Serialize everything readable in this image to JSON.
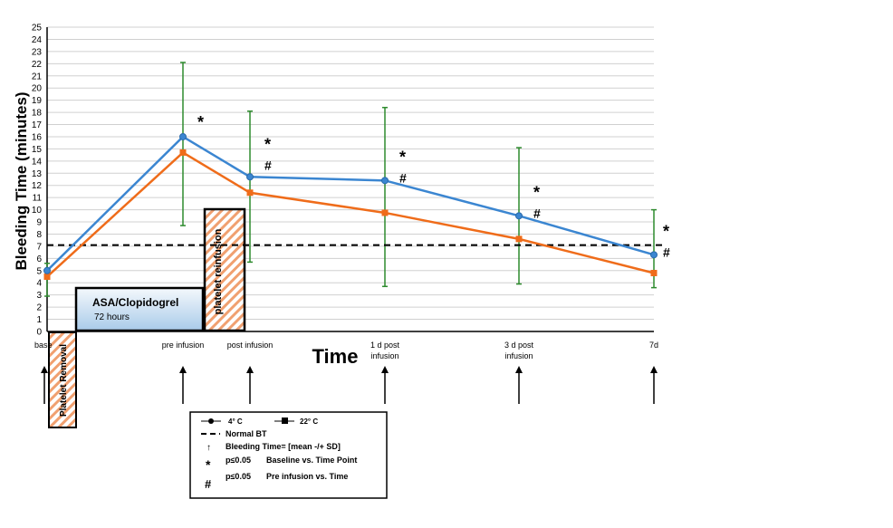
{
  "chart_data": {
    "type": "line",
    "title": "",
    "xlabel": "Time",
    "ylabel": "Bleeding Time (minutes)",
    "ylim": [
      0,
      25
    ],
    "yticks": [
      0,
      1,
      2,
      3,
      4,
      5,
      6,
      7,
      8,
      9,
      10,
      11,
      12,
      13,
      14,
      15,
      16,
      17,
      18,
      19,
      20,
      21,
      22,
      23,
      24,
      25
    ],
    "grid": true,
    "categories": [
      "base",
      "pre infusion",
      "post infusion",
      "1 d post infusion",
      "3 d post infusion",
      "7d"
    ],
    "series": [
      {
        "name": "4° C",
        "marker": "circle",
        "color": "#3b86d1",
        "values": [
          5.0,
          16.0,
          12.7,
          12.4,
          9.5,
          6.3
        ]
      },
      {
        "name": "22° C",
        "marker": "square",
        "color": "#ef6c1a",
        "values": [
          4.5,
          14.7,
          11.4,
          9.75,
          7.6,
          4.8
        ]
      }
    ],
    "error_bars": {
      "color": "#2e8b2e",
      "low": [
        2.9,
        8.7,
        5.7,
        3.7,
        3.9,
        3.6
      ],
      "high": [
        5.6,
        22.1,
        18.1,
        18.4,
        15.1,
        10.0
      ]
    },
    "reference_line": {
      "label": "Normal BT",
      "value": 7.1
    },
    "significance": [
      [],
      [
        "*"
      ],
      [
        "*",
        "#"
      ],
      [
        "*",
        "#"
      ],
      [
        "*",
        "#"
      ],
      [
        "*",
        "#"
      ]
    ],
    "annotations": {
      "asa_title": "ASA/Clopidogrel",
      "asa_sub": "72 hours",
      "platelet_removal": "Platelet Removal",
      "platelet_reinfusion": "platelet reinfusion"
    },
    "legend": {
      "s1": "4° C",
      "s2": "22° C",
      "normal": "Normal BT",
      "arrow": "Bleeding Time= [mean -/+ SD]",
      "star_p": "p≤0.05",
      "star_text": "Baseline vs. Time Point",
      "hash_p": "p≤0.05",
      "hash_text": "Pre infusion vs. Time",
      "star_sym": "*",
      "hash_sym": "#",
      "arrow_sym": "↑"
    }
  }
}
